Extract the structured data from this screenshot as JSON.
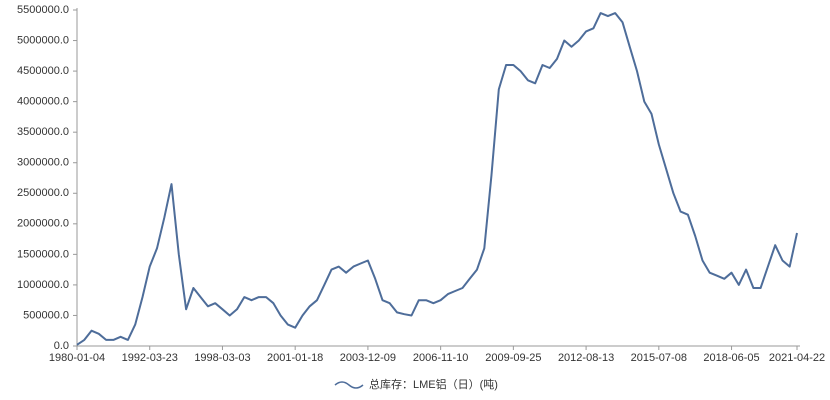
{
  "chart_data": {
    "type": "line",
    "categories": [
      "1980-01-04",
      null,
      null,
      null,
      null,
      null,
      null,
      null,
      null,
      null,
      "1992-03-23",
      null,
      null,
      null,
      null,
      null,
      null,
      null,
      null,
      null,
      "1998-03-03",
      null,
      null,
      null,
      null,
      null,
      null,
      null,
      null,
      null,
      "2001-01-18",
      null,
      null,
      null,
      null,
      null,
      null,
      null,
      null,
      null,
      "2003-12-09",
      null,
      null,
      null,
      null,
      null,
      null,
      null,
      null,
      null,
      "2006-11-10",
      null,
      null,
      null,
      null,
      null,
      null,
      null,
      null,
      null,
      "2009-09-25",
      null,
      null,
      null,
      null,
      null,
      null,
      null,
      null,
      null,
      "2012-08-13",
      null,
      null,
      null,
      null,
      null,
      null,
      null,
      null,
      null,
      "2015-07-08",
      null,
      null,
      null,
      null,
      null,
      null,
      null,
      null,
      null,
      "2018-06-05",
      null,
      null,
      null,
      null,
      null,
      null,
      null,
      null,
      "2021-04-22"
    ],
    "series": [
      {
        "name": "总库存：LME铝（日）(吨)",
        "color": "#4e6d9a",
        "values": [
          20000,
          100000,
          250000,
          200000,
          100000,
          100000,
          150000,
          100000,
          350000,
          800000,
          1300000,
          1600000,
          2100000,
          2650000,
          1500000,
          600000,
          950000,
          800000,
          650000,
          700000,
          600000,
          500000,
          600000,
          800000,
          750000,
          800000,
          800000,
          700000,
          500000,
          350000,
          300000,
          500000,
          650000,
          750000,
          1000000,
          1250000,
          1300000,
          1200000,
          1300000,
          1350000,
          1400000,
          1100000,
          750000,
          700000,
          550000,
          520000,
          500000,
          750000,
          750000,
          700000,
          750000,
          850000,
          900000,
          950000,
          1100000,
          1250000,
          1600000,
          2800000,
          4200000,
          4600000,
          4600000,
          4500000,
          4350000,
          4300000,
          4600000,
          4550000,
          4700000,
          5000000,
          4900000,
          5000000,
          5150000,
          5200000,
          5450000,
          5400000,
          5450000,
          5300000,
          4900000,
          4500000,
          4000000,
          3800000,
          3300000,
          2900000,
          2500000,
          2200000,
          2150000,
          1800000,
          1400000,
          1200000,
          1150000,
          1100000,
          1200000,
          1000000,
          1250000,
          950000,
          950000,
          1300000,
          1650000,
          1400000,
          1300000,
          1850000
        ]
      }
    ],
    "ylim": [
      0,
      5500000
    ],
    "yticks": [
      {
        "value": 0,
        "label": "0.0"
      },
      {
        "value": 500000,
        "label": "500000.0"
      },
      {
        "value": 1000000,
        "label": "1000000.0"
      },
      {
        "value": 1500000,
        "label": "1500000.0"
      },
      {
        "value": 2000000,
        "label": "2000000.0"
      },
      {
        "value": 2500000,
        "label": "2500000.0"
      },
      {
        "value": 3000000,
        "label": "3000000.0"
      },
      {
        "value": 3500000,
        "label": "3500000.0"
      },
      {
        "value": 4000000,
        "label": "4000000.0"
      },
      {
        "value": 4500000,
        "label": "4500000.0"
      },
      {
        "value": 5000000,
        "label": "5000000.0"
      },
      {
        "value": 5500000,
        "label": "5500000.0"
      }
    ],
    "legend": "bottom"
  }
}
